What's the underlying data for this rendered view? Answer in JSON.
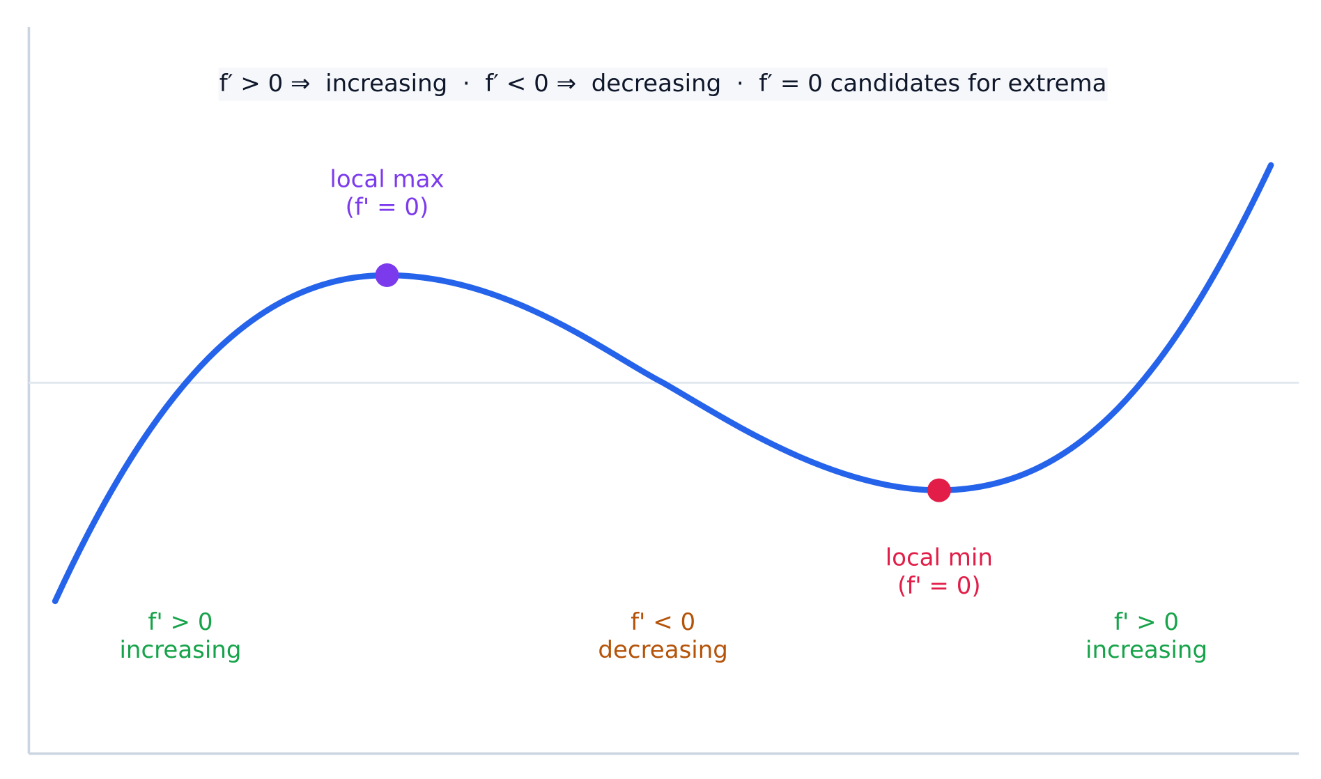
{
  "banner": "f′ > 0 ⇒  increasing  ·  f′ < 0 ⇒  decreasing  ·  f′ = 0 candidates for extrema",
  "points": [
    {
      "label": [
        "local max",
        "(f' = 0)"
      ]
    },
    {
      "label": [
        "local min",
        "(f' = 0)"
      ]
    }
  ],
  "regions": [
    {
      "label": [
        "f' > 0",
        "increasing"
      ]
    },
    {
      "label": [
        "f' < 0",
        "decreasing"
      ]
    },
    {
      "label": [
        "f' > 0",
        "increasing"
      ]
    }
  ]
}
